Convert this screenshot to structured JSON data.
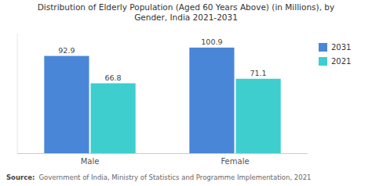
{
  "chart_data": {
    "type": "bar",
    "title": "Distribution of Elderly Population (Aged 60 Years Above) (in Millions), by\nGender, India 2021-2031",
    "categories": [
      "Male",
      "Female"
    ],
    "series": [
      {
        "name": "2031",
        "color": "#4A86D8",
        "values": [
          92.9,
          100.9
        ]
      },
      {
        "name": "2021",
        "color": "#3ECECE",
        "values": [
          66.8,
          71.1
        ]
      }
    ],
    "ylim": [
      0,
      115
    ],
    "tick_labels": "x",
    "data_labels": true,
    "legend": "right",
    "grid": false,
    "annotations": [
      "Source:",
      "Government of India, Ministry of Statistics and Programme Implementation, 2021"
    ]
  }
}
